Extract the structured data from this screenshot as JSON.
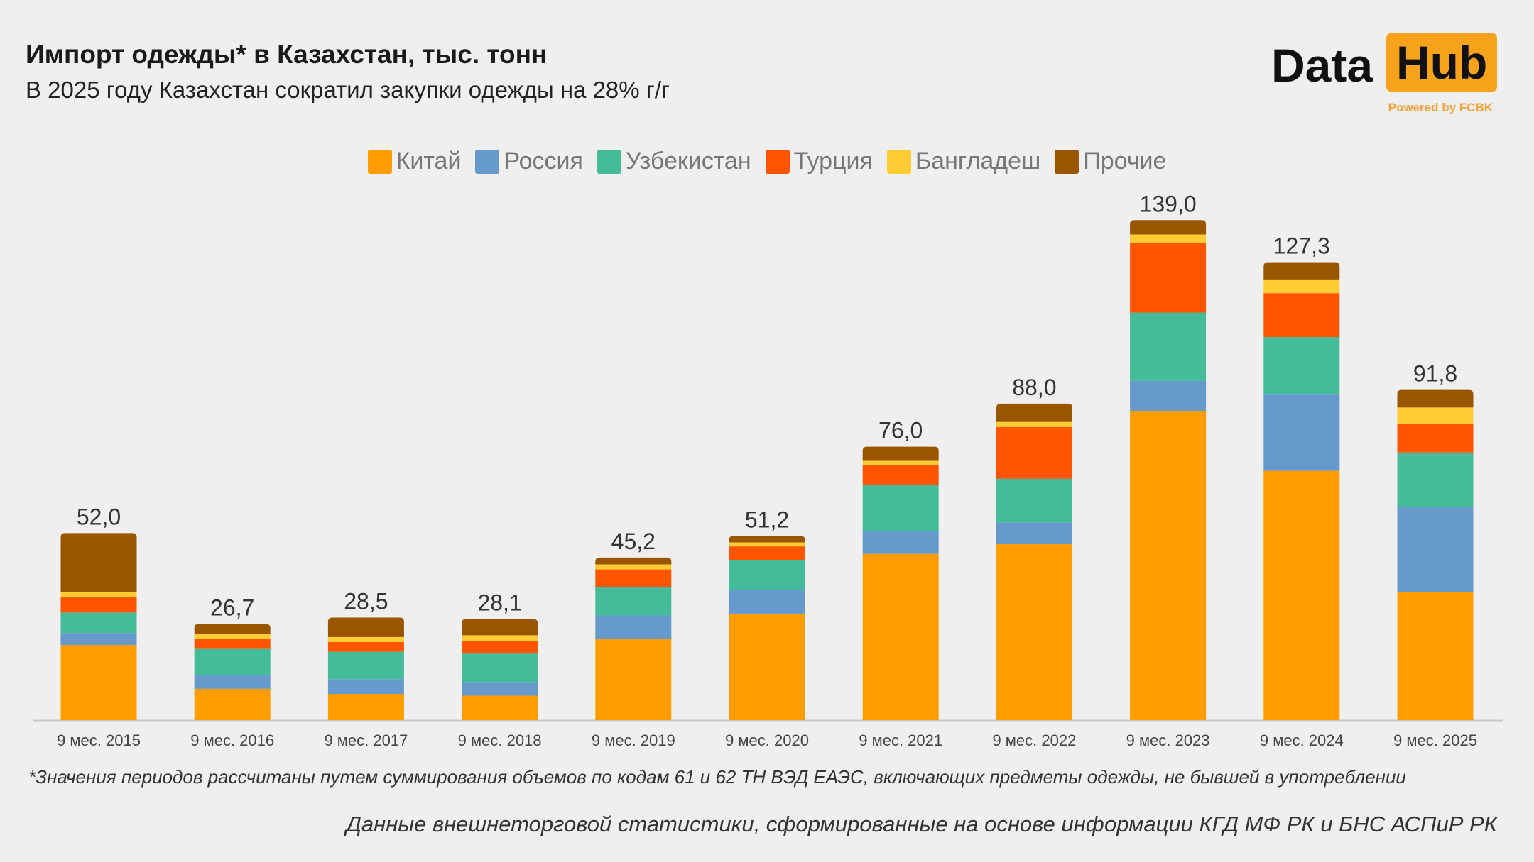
{
  "header": {
    "title": "Импорт одежды* в Казахстан, тыс. тонн",
    "subtitle": "В 2025 году Казахстан сократил закупки одежды на 28% г/г"
  },
  "logo": {
    "text1": "Data",
    "text2": "Hub",
    "tagline": "Powered by FCBK"
  },
  "footnote": "*Значения периодов рассчитаны путем суммирования объемов по кодам 61 и 62 ТН ВЭД ЕАЭС, включающих предметы одежды, не бывшей в употреблении",
  "source": "Данные внешнеторговой статистики, сформированные на основе информации КГД МФ РК и БНС АСПиР РК",
  "chart_data": {
    "type": "bar",
    "stacked": true,
    "legend_position": "top",
    "grid": false,
    "title": "Импорт одежды* в Казахстан, тыс. тонн",
    "ylim": [
      0,
      145
    ],
    "categories": [
      "9 мес. 2015",
      "9 мес. 2016",
      "9 мес. 2017",
      "9 мес. 2018",
      "9 мес. 2019",
      "9 мес. 2020",
      "9 мес. 2021",
      "9 мес. 2022",
      "9 мес. 2023",
      "9 мес. 2024",
      "9 мес. 2025"
    ],
    "totals": [
      52.0,
      26.7,
      28.5,
      28.1,
      45.2,
      51.2,
      76.0,
      88.0,
      139.0,
      127.3,
      91.8
    ],
    "total_labels": [
      "52,0",
      "26,7",
      "28,5",
      "28,1",
      "45,2",
      "51,2",
      "76,0",
      "88,0",
      "139,0",
      "127,3",
      "91,8"
    ],
    "series": [
      {
        "name": "Китай",
        "color": "#ff9d00",
        "values": [
          20.9,
          8.7,
          7.3,
          6.8,
          22.6,
          29.6,
          46.2,
          48.9,
          85.9,
          69.3,
          35.6
        ]
      },
      {
        "name": "Россия",
        "color": "#6699cc",
        "values": [
          3.3,
          3.8,
          4.1,
          3.8,
          6.5,
          6.5,
          6.3,
          6.0,
          8.4,
          21.2,
          23.6
        ]
      },
      {
        "name": "Узбекистан",
        "color": "#44bb99",
        "values": [
          5.7,
          7.3,
          7.6,
          7.9,
          7.9,
          8.4,
          12.8,
          12.2,
          19.0,
          16.0,
          15.2
        ]
      },
      {
        "name": "Турция",
        "color": "#ff5500",
        "values": [
          4.3,
          2.7,
          2.7,
          3.5,
          4.9,
          3.8,
          5.7,
          14.4,
          19.3,
          12.2,
          7.9
        ]
      },
      {
        "name": "Бангладеш",
        "color": "#ffcc33",
        "values": [
          1.4,
          1.4,
          1.4,
          1.6,
          1.4,
          1.1,
          1.1,
          1.4,
          2.4,
          3.8,
          4.6
        ]
      },
      {
        "name": "Прочие",
        "color": "#995500",
        "values": [
          16.4,
          2.8,
          5.4,
          4.5,
          1.9,
          1.8,
          3.9,
          5.1,
          4.0,
          4.8,
          4.9
        ]
      }
    ]
  }
}
